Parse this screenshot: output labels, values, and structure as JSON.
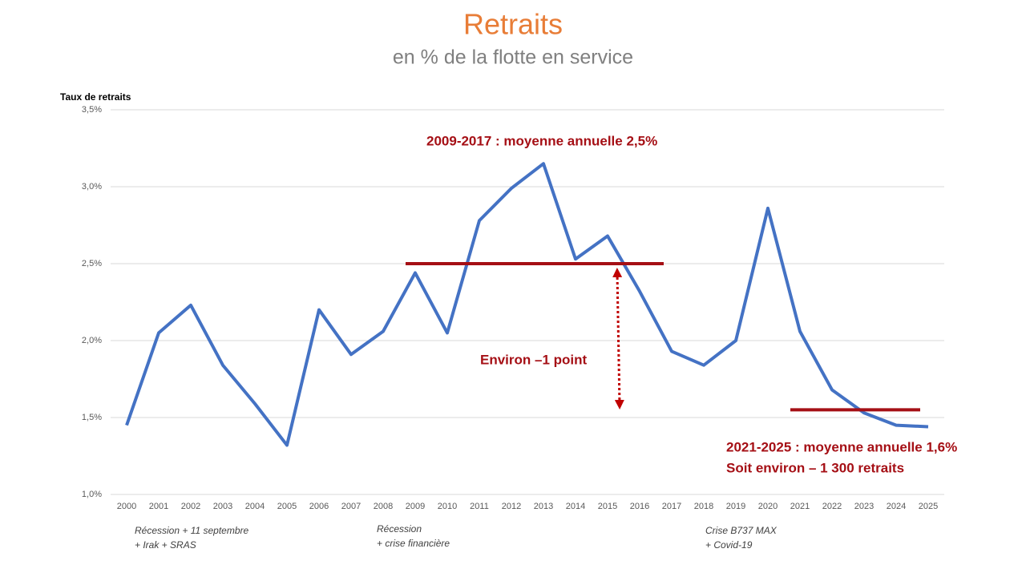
{
  "chart_data": {
    "type": "line",
    "title": "Retraits",
    "subtitle": "en % de la flotte en service",
    "y_label": "Taux de retraits",
    "categories": [
      "2000",
      "2001",
      "2002",
      "2003",
      "2004",
      "2005",
      "2006",
      "2007",
      "2008",
      "2009",
      "2010",
      "2011",
      "2012",
      "2013",
      "2014",
      "2015",
      "2016",
      "2017",
      "2018",
      "2019",
      "2020",
      "2021",
      "2022",
      "2023",
      "2024",
      "2025"
    ],
    "series": [
      {
        "name": "Taux de retraits",
        "color": "#4472c4",
        "values": [
          1.45,
          2.05,
          2.23,
          1.84,
          1.59,
          1.32,
          2.2,
          1.91,
          2.06,
          2.44,
          2.05,
          2.78,
          2.99,
          3.15,
          2.53,
          2.68,
          2.32,
          1.93,
          1.84,
          2.0,
          2.86,
          2.06,
          1.68,
          1.53,
          1.45,
          1.44
        ]
      }
    ],
    "ylim": [
      1.0,
      3.5
    ],
    "yticks": [
      {
        "value": 1.0,
        "label": "1,0%"
      },
      {
        "value": 1.5,
        "label": "1,5%"
      },
      {
        "value": 2.0,
        "label": "2,0%"
      },
      {
        "value": 2.5,
        "label": "2,5%"
      },
      {
        "value": 3.0,
        "label": "3,0%"
      },
      {
        "value": 3.5,
        "label": "3,5%"
      }
    ],
    "grid": true,
    "reference_lines": [
      {
        "value": 2.5,
        "start": "2009",
        "end": "2017",
        "color": "#a50f15"
      },
      {
        "value": 1.55,
        "start": "2021",
        "end": "2025",
        "color": "#a50f15"
      }
    ],
    "annotations": [
      "2009-2017 : moyenne annuelle 2,5%",
      "Environ –1 point",
      "2021-2025 : moyenne annuelle 1,6%",
      "Soit environ – 1 300 retraits"
    ],
    "events": [
      [
        "Récession + 11 septembre",
        "+ Irak + SRAS"
      ],
      [
        "Récession",
        "+ crise financière"
      ],
      [
        "Crise B737 MAX",
        "+ Covid-19"
      ]
    ]
  }
}
